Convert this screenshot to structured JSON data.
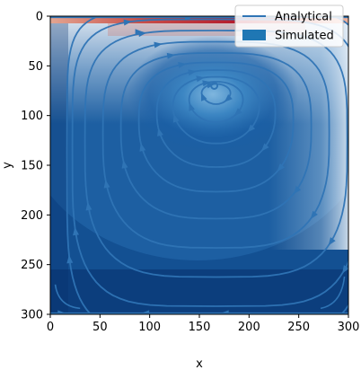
{
  "chart_data": {
    "type": "heatmap",
    "title": "",
    "xlabel": "x",
    "ylabel": "y",
    "xlim": [
      0,
      300
    ],
    "ylim": [
      300,
      0
    ],
    "y_axis_inverted": true,
    "x_ticks": [
      0,
      50,
      100,
      150,
      200,
      250,
      300
    ],
    "y_ticks": [
      0,
      50,
      100,
      150,
      200,
      250,
      300
    ],
    "grid": false,
    "legend": {
      "placement": "top-right",
      "entries": [
        {
          "label": "Analytical",
          "marker": "line",
          "color": "#2f74b5"
        },
        {
          "label": "Simulated",
          "marker": "patch",
          "color": "#1f77b4"
        }
      ]
    },
    "overlay": "streamlines",
    "colormap": [
      "#08306b",
      "#2171b5",
      "#6baed6",
      "#deebf7",
      "#f7f7f7",
      "#fbb4a0",
      "#d6604d",
      "#b2182b"
    ],
    "vortex_center": [
      165,
      70
    ],
    "streamline_color": "#2f74b5"
  }
}
